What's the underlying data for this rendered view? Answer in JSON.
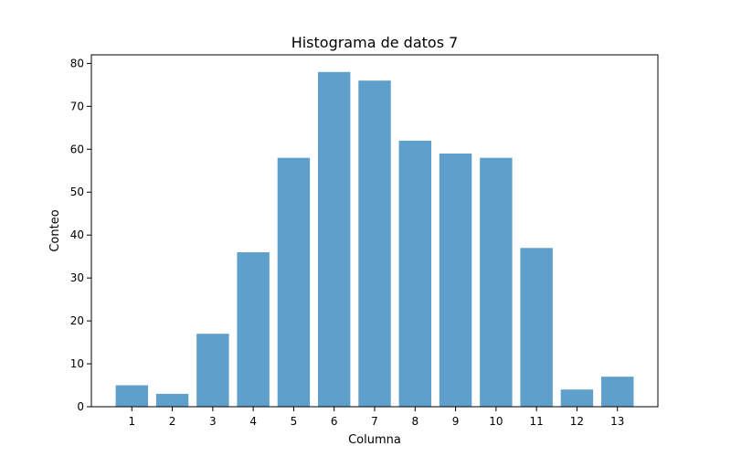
{
  "chart_data": {
    "type": "bar",
    "title": "Histograma de datos 7",
    "xlabel": "Columna",
    "ylabel": "Conteo",
    "categories": [
      "1",
      "2",
      "3",
      "4",
      "5",
      "6",
      "7",
      "8",
      "9",
      "10",
      "11",
      "12",
      "13"
    ],
    "values": [
      5,
      3,
      17,
      36,
      58,
      78,
      76,
      62,
      59,
      58,
      37,
      4,
      7
    ],
    "ylim": [
      0,
      82
    ],
    "yticks": [
      "0",
      "10",
      "20",
      "30",
      "40",
      "50",
      "60",
      "70",
      "80"
    ],
    "grid": false,
    "bar_color": "#5f9fcb"
  }
}
